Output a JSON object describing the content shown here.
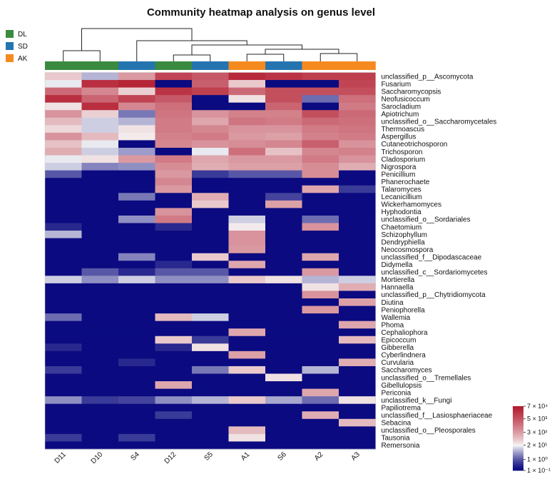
{
  "chart_data": {
    "type": "heatmap",
    "title": "Community heatmap analysis on genus level",
    "columns": [
      "D11",
      "D10",
      "S4",
      "D12",
      "S5",
      "A1",
      "S6",
      "A2",
      "A3"
    ],
    "column_groups": [
      "DL",
      "DL",
      "SD",
      "DL",
      "SD",
      "AK",
      "SD",
      "AK",
      "AK"
    ],
    "groups": [
      {
        "name": "DL",
        "color": "#3a8a3f"
      },
      {
        "name": "SD",
        "color": "#2474b0"
      },
      {
        "name": "AK",
        "color": "#f58a1f"
      }
    ],
    "rows": [
      "unclassified_p__Ascomycota",
      "Fusarium",
      "Saccharomycopsis",
      "Neofusicoccum",
      "Sarocladium",
      "Apiotrichum",
      "unclassified_o__Saccharomycetales",
      "Thermoascus",
      "Aspergillus",
      "Cutaneotrichosporon",
      "Trichosporon",
      "Cladosporium",
      "Nigrospora",
      "Penicillium",
      "Phanerochaete",
      "Talaromyces",
      "Lecanicillium",
      "Wickerhamomyces",
      "Hyphodontia",
      "unclassified_o__Sordariales",
      "Chaetomium",
      "Schizophyllum",
      "Dendryphiella",
      "Neocosmospora",
      "unclassified_f__Dipodascaceae",
      "Didymella",
      "unclassified_c__Sordariomycetes",
      "Mortierella",
      "Hannaella",
      "unclassified_p__Chytridiomycota",
      "Diutina",
      "Peniophorella",
      "Wallemia",
      "Phoma",
      "Cephaliophora",
      "Epicoccum",
      "Gibberella",
      "Cyberlindnera",
      "Curvularia",
      "Saccharomyces",
      "unclassified_o__Tremellales",
      "Gibellulopsis",
      "Periconia",
      "unclassified_k__Fungi",
      "Papiliotrema",
      "unclassified_f__Lasiosphaeriaceae",
      "Sebacina",
      "unclassified_o__Pleosporales",
      "Tausonia",
      "Remersonia"
    ],
    "values_log10": [
      [
        1.8,
        0.8,
        2.5,
        4.0,
        3.6,
        4.5,
        4.3,
        4.1,
        4.1
      ],
      [
        1.2,
        4.4,
        4.6,
        -1.0,
        3.5,
        1.8,
        -1.0,
        -1.0,
        4.0
      ],
      [
        3.3,
        2.8,
        1.7,
        4.3,
        4.1,
        3.3,
        3.8,
        3.8,
        3.8
      ],
      [
        4.4,
        3.4,
        4.0,
        3.6,
        -1.0,
        1.5,
        3.8,
        0.2,
        3.2
      ],
      [
        1.5,
        4.4,
        2.8,
        3.2,
        -1.0,
        -1.0,
        3.4,
        -1.0,
        3.0
      ],
      [
        2.6,
        1.7,
        0.3,
        3.1,
        2.6,
        2.9,
        2.9,
        3.8,
        3.3
      ],
      [
        2.0,
        1.0,
        0.8,
        3.0,
        2.3,
        3.1,
        3.0,
        3.3,
        3.2
      ],
      [
        1.6,
        1.0,
        1.5,
        3.0,
        2.8,
        2.6,
        2.6,
        3.0,
        3.1
      ],
      [
        2.6,
        2.0,
        1.4,
        2.9,
        3.0,
        2.5,
        2.4,
        2.9,
        3.0
      ],
      [
        1.9,
        1.2,
        -1.0,
        2.8,
        2.6,
        2.7,
        2.8,
        3.5,
        2.6
      ],
      [
        2.2,
        1.0,
        0.6,
        -1.0,
        1.2,
        3.2,
        1.9,
        2.8,
        2.9
      ],
      [
        1.2,
        1.5,
        2.5,
        3.0,
        2.3,
        2.5,
        2.5,
        3.0,
        2.6
      ],
      [
        1.0,
        0.4,
        0.5,
        2.7,
        2.2,
        2.4,
        2.4,
        2.7,
        2.2
      ],
      [
        0.0,
        -1.0,
        -1.0,
        2.5,
        -0.3,
        0.0,
        0.0,
        2.7,
        -1.0
      ],
      [
        -1.0,
        -1.0,
        -1.0,
        2.8,
        -1.0,
        -1.0,
        -1.0,
        -1.0,
        -1.0
      ],
      [
        -1.0,
        -1.0,
        -1.0,
        2.5,
        -1.0,
        -1.0,
        -1.0,
        2.3,
        -0.3
      ],
      [
        -1.0,
        -1.0,
        0.3,
        -1.0,
        2.2,
        -1.0,
        -0.2,
        -1.0,
        -1.0
      ],
      [
        -1.0,
        -1.0,
        -1.0,
        -1.0,
        1.8,
        -1.0,
        2.4,
        -1.0,
        -1.0
      ],
      [
        -1.0,
        -1.0,
        -1.0,
        2.6,
        -1.0,
        -1.0,
        -1.0,
        -1.0,
        -1.0
      ],
      [
        -1.0,
        -1.0,
        0.5,
        3.0,
        -1.0,
        1.0,
        -1.0,
        0.2,
        -1.0
      ],
      [
        -0.5,
        -1.0,
        -1.0,
        -0.5,
        -1.0,
        1.4,
        -1.0,
        2.6,
        -1.0
      ],
      [
        0.8,
        -1.0,
        -1.0,
        -1.0,
        -1.0,
        2.6,
        -1.0,
        -1.0,
        -1.0
      ],
      [
        -1.0,
        -1.0,
        -1.0,
        -1.0,
        -1.0,
        2.6,
        -1.0,
        -1.0,
        -1.0
      ],
      [
        -1.0,
        -1.0,
        -1.0,
        -1.0,
        -1.0,
        2.5,
        -1.0,
        -1.0,
        -1.0
      ],
      [
        -1.0,
        -1.0,
        0.4,
        -1.0,
        1.8,
        -1.0,
        -1.0,
        2.3,
        -1.0
      ],
      [
        -1.0,
        -1.0,
        -1.0,
        -0.5,
        -1.0,
        2.3,
        -1.0,
        -1.0,
        -1.0
      ],
      [
        -1.0,
        0.0,
        -0.5,
        0.0,
        0.0,
        -1.0,
        -1.0,
        2.5,
        -1.0
      ],
      [
        1.0,
        0.5,
        1.0,
        0.5,
        0.5,
        1.8,
        1.5,
        0.8,
        1.0
      ],
      [
        -1.0,
        -1.0,
        -1.0,
        -1.0,
        -1.0,
        -1.0,
        -1.0,
        1.5,
        2.2
      ],
      [
        -1.0,
        -1.0,
        -1.0,
        -1.0,
        -1.0,
        -1.0,
        -1.0,
        2.6,
        -1.0
      ],
      [
        -1.0,
        -1.0,
        -1.0,
        -1.0,
        -1.0,
        -1.0,
        -1.0,
        -1.0,
        2.4
      ],
      [
        -1.0,
        -1.0,
        -1.0,
        -1.0,
        -1.0,
        -1.0,
        -1.0,
        2.5,
        -1.0
      ],
      [
        0.2,
        -1.0,
        -1.0,
        2.0,
        1.0,
        -1.0,
        -1.0,
        -1.0,
        -1.0
      ],
      [
        -1.0,
        -1.0,
        -1.0,
        -1.0,
        -1.0,
        -1.0,
        -1.0,
        -1.0,
        2.3
      ],
      [
        -1.0,
        -1.0,
        -1.0,
        -1.0,
        -1.0,
        2.3,
        -1.0,
        -1.0,
        -1.0
      ],
      [
        -1.0,
        -1.0,
        -1.0,
        1.8,
        -0.3,
        -1.0,
        -1.0,
        -1.0,
        2.0
      ],
      [
        -0.5,
        -1.0,
        -1.0,
        -0.5,
        1.5,
        -1.0,
        -1.0,
        -1.0,
        -1.0
      ],
      [
        -1.0,
        -1.0,
        -1.0,
        -1.0,
        -1.0,
        2.4,
        -1.0,
        -1.0,
        -1.0
      ],
      [
        -1.0,
        -1.0,
        -0.5,
        -1.0,
        -1.0,
        -1.0,
        -1.0,
        -1.0,
        2.2
      ],
      [
        -0.3,
        -1.0,
        -1.0,
        -1.0,
        0.3,
        1.8,
        -1.0,
        0.8,
        -1.0
      ],
      [
        -1.0,
        -1.0,
        -1.0,
        -1.0,
        -1.0,
        -1.0,
        1.5,
        -1.0,
        -1.0
      ],
      [
        -1.0,
        -1.0,
        -1.0,
        2.3,
        -1.0,
        -1.0,
        -1.0,
        -1.0,
        -1.0
      ],
      [
        -1.0,
        -1.0,
        -1.0,
        -1.0,
        -1.0,
        -1.0,
        -1.0,
        2.3,
        -1.0
      ],
      [
        0.5,
        -0.3,
        -0.2,
        0.5,
        0.8,
        1.8,
        0.7,
        0.2,
        1.5
      ],
      [
        -1.0,
        -1.0,
        -1.0,
        -1.0,
        -1.0,
        -1.0,
        -1.0,
        -1.0,
        -1.0
      ],
      [
        -1.0,
        -1.0,
        -1.0,
        -0.3,
        -1.0,
        -1.0,
        -1.0,
        2.2,
        -1.0
      ],
      [
        -1.0,
        -1.0,
        -1.0,
        -1.0,
        -1.0,
        -1.0,
        -1.0,
        -1.0,
        2.0
      ],
      [
        -1.0,
        -1.0,
        -1.0,
        -1.0,
        -1.0,
        2.0,
        -1.0,
        -1.0,
        -1.0
      ],
      [
        -0.3,
        -1.0,
        -0.3,
        -1.0,
        -1.0,
        1.5,
        -1.0,
        -1.0,
        -1.0
      ],
      [
        -1.0,
        -1.0,
        -1.0,
        -1.0,
        -1.0,
        -1.0,
        -1.0,
        -1.0,
        -1.0
      ]
    ],
    "color_scale": {
      "type": "log",
      "min_log10": -1,
      "max_log10": 4.85,
      "low_color": "#0b0a80",
      "mid_color": "#f7f7f7",
      "high_color": "#b2182b",
      "tick_labels": [
        "7 × 10⁴",
        "5 × 10³",
        "3 × 10²",
        "2 × 10¹",
        "1 × 10⁰",
        "1 × 10⁻¹"
      ],
      "tick_values_log10": [
        4.845,
        3.699,
        2.477,
        1.301,
        0.0,
        -1.0
      ]
    },
    "dendrogram": "hierarchical clustering of columns: ((D11,D10),(S4,((D12,S5),((A1,S6),(A2,A3)))))"
  }
}
